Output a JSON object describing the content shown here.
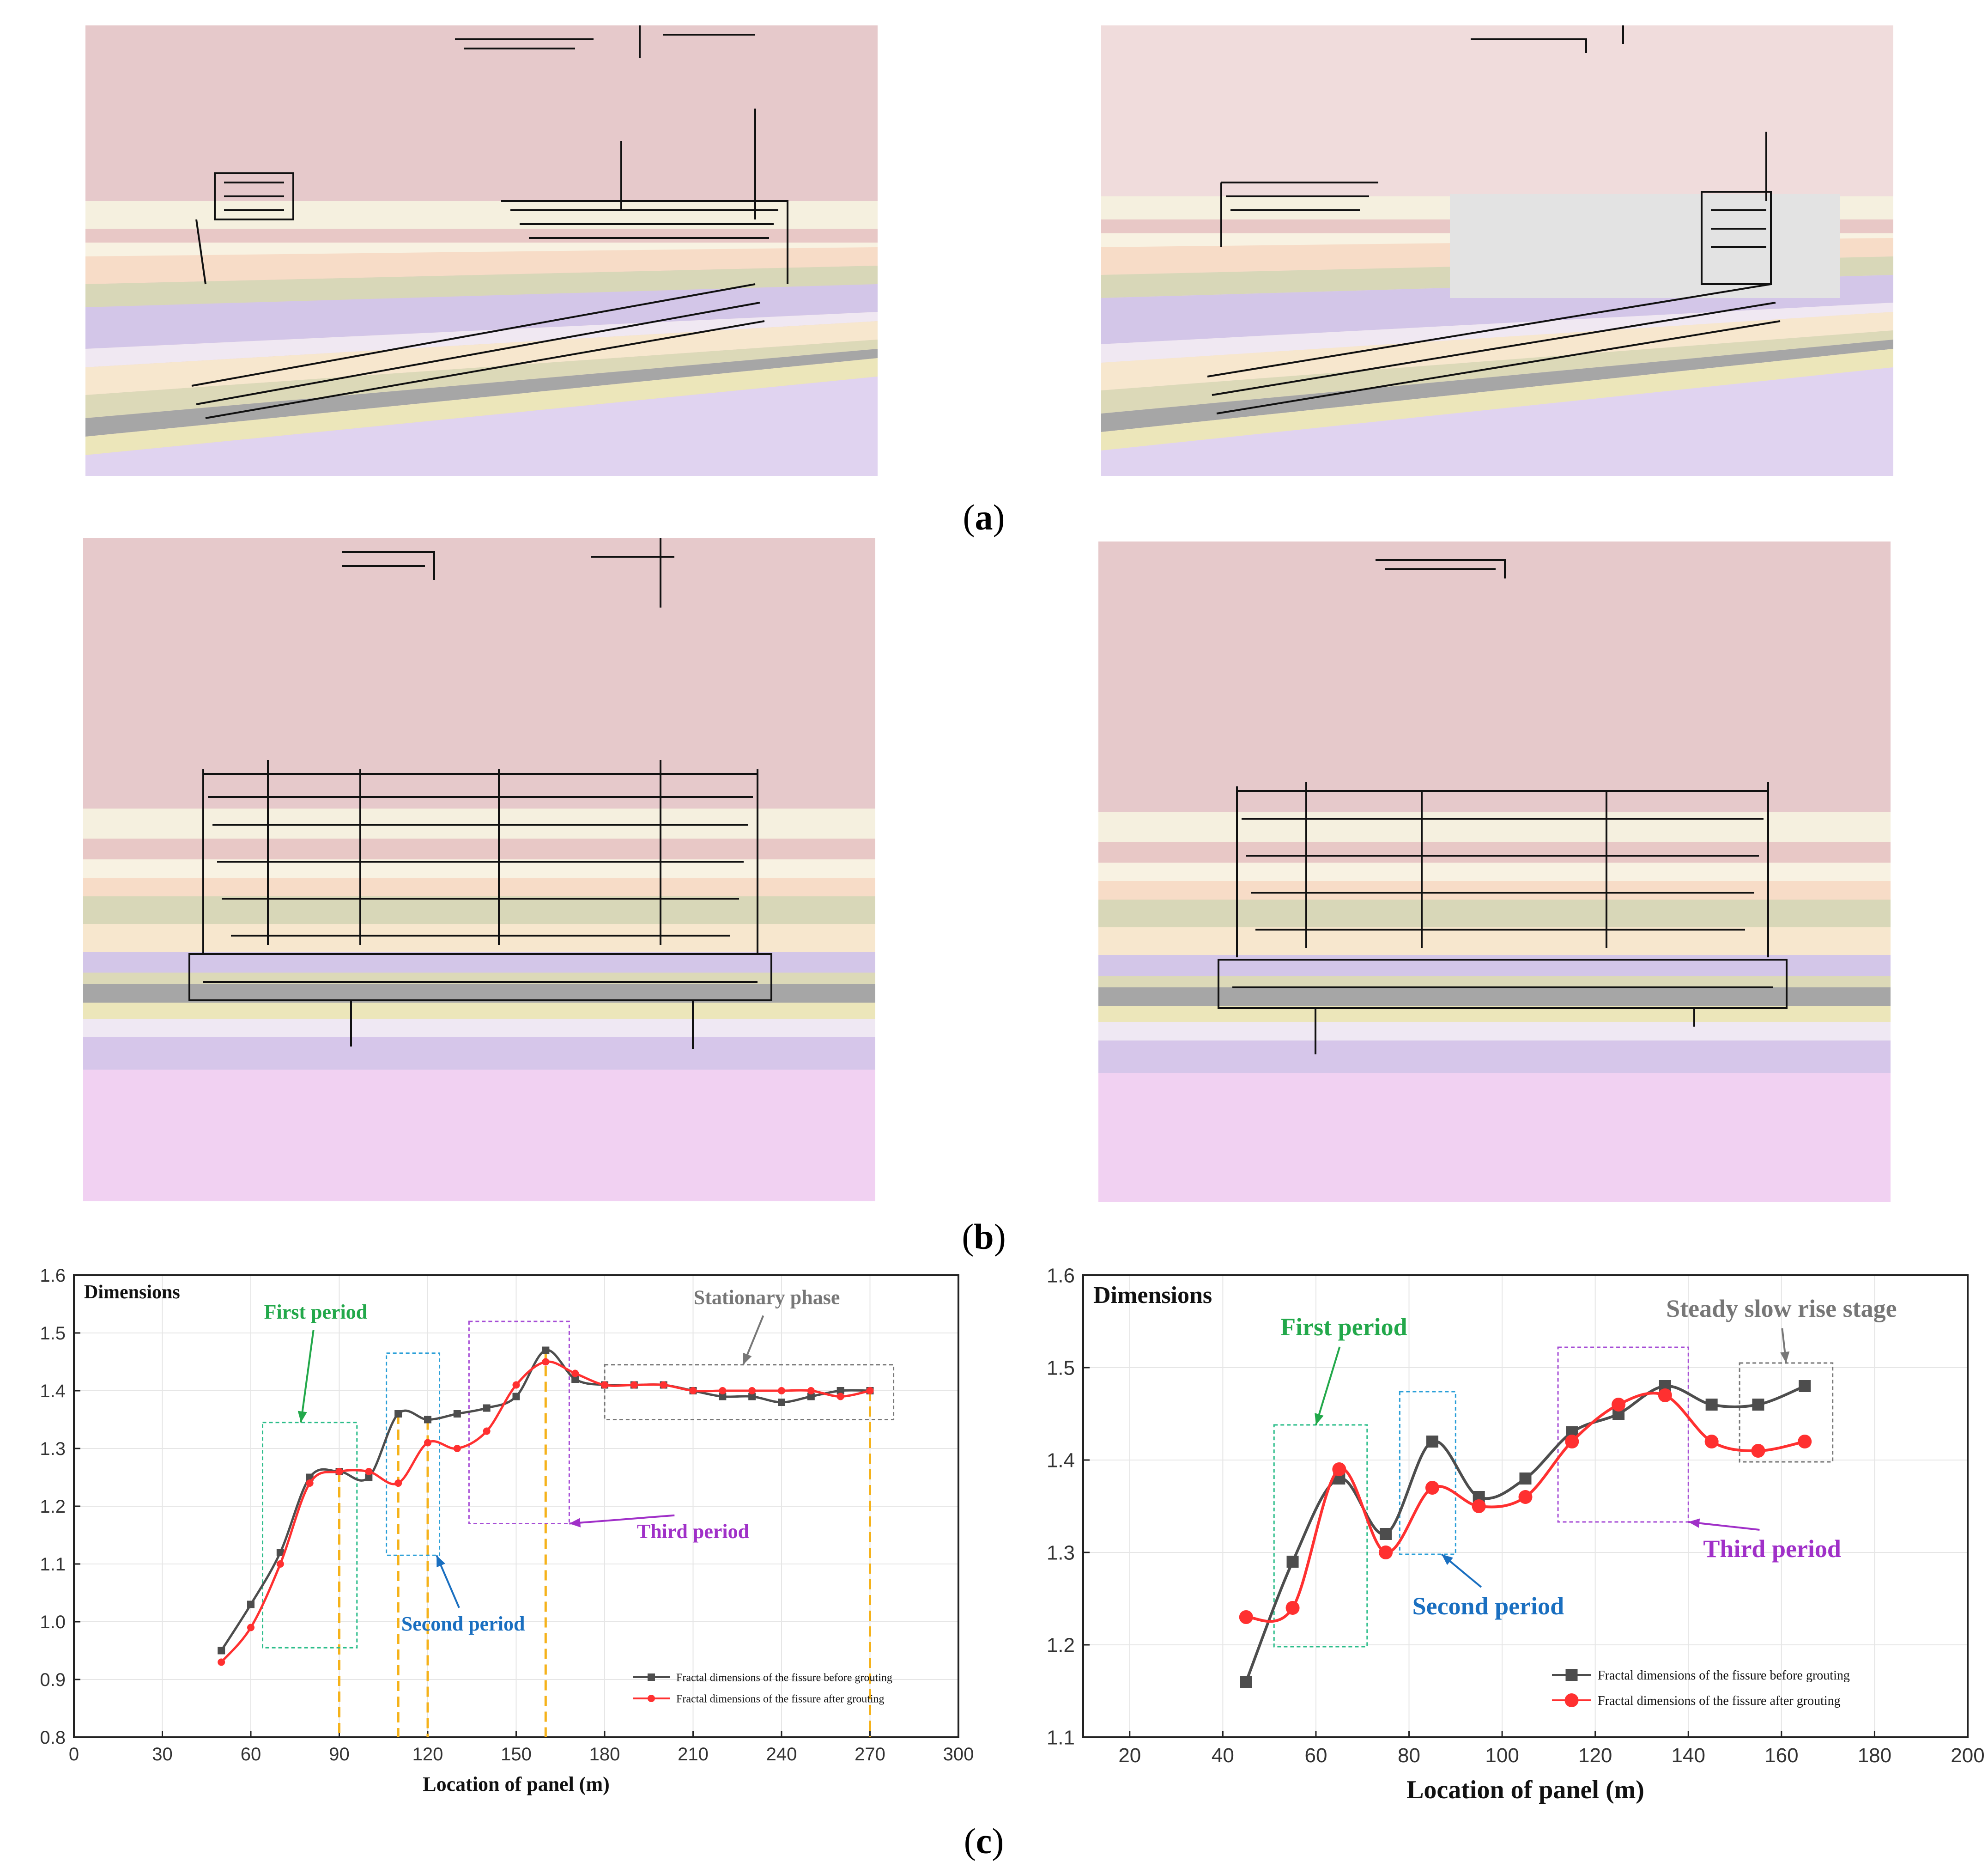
{
  "captions": {
    "a": "a",
    "b": "b",
    "c": "c"
  },
  "colors": {
    "before": "#4d4d4d",
    "after": "#ff3030",
    "first_period": "#2bbd8a",
    "second_period": "#2a9fd8",
    "third_period": "#a64dd6",
    "stationary": "#777777",
    "guide": "#f5b21a",
    "first_period_text": "#22a84a",
    "second_period_text": "#1a6fc0",
    "third_period_text": "#a030c8"
  },
  "chart_data": [
    {
      "type": "line",
      "title": "Dimensions",
      "xlabel": "Location of panel (m)",
      "ylabel": "",
      "xlim": [
        0,
        300
      ],
      "ylim": [
        0.8,
        1.6
      ],
      "xticks": [
        "0",
        "30",
        "60",
        "90",
        "120",
        "150",
        "180",
        "210",
        "240",
        "270",
        "300"
      ],
      "yticks": [
        "0.8",
        "0.9",
        "1.0",
        "1.1",
        "1.2",
        "1.3",
        "1.4",
        "1.5",
        "1.6"
      ],
      "grid": true,
      "legend_position": "bottom-right",
      "series": [
        {
          "name": "Fractal dimensions of the fissure before grouting",
          "x": [
            50,
            60,
            70,
            80,
            90,
            100,
            110,
            120,
            130,
            140,
            150,
            160,
            170,
            180,
            190,
            200,
            210,
            220,
            230,
            240,
            250,
            260,
            270
          ],
          "y": [
            0.95,
            1.03,
            1.12,
            1.25,
            1.26,
            1.25,
            1.36,
            1.35,
            1.36,
            1.37,
            1.39,
            1.47,
            1.42,
            1.41,
            1.41,
            1.41,
            1.4,
            1.39,
            1.39,
            1.38,
            1.39,
            1.4,
            1.4
          ]
        },
        {
          "name": "Fractal dimensions of the fissure after grouting",
          "x": [
            50,
            60,
            70,
            80,
            90,
            100,
            110,
            120,
            130,
            140,
            150,
            160,
            170,
            180,
            190,
            200,
            210,
            220,
            230,
            240,
            250,
            260,
            270
          ],
          "y": [
            0.93,
            0.99,
            1.1,
            1.24,
            1.26,
            1.26,
            1.24,
            1.31,
            1.3,
            1.33,
            1.41,
            1.45,
            1.43,
            1.41,
            1.41,
            1.41,
            1.4,
            1.4,
            1.4,
            1.4,
            1.4,
            1.39,
            1.4
          ]
        }
      ],
      "guide_lines_x": [
        90,
        110,
        120,
        160,
        270
      ],
      "annotations": [
        {
          "text": "First period",
          "color_key": "first_period_text",
          "box": {
            "x0": 64,
            "x1": 96,
            "y0": 0.955,
            "y1": 1.345
          },
          "box_color_key": "first_period",
          "label_at": {
            "x": 82,
            "y": 1.525
          },
          "arrow_to": {
            "x": 77,
            "y": 1.345
          }
        },
        {
          "text": "Second period",
          "color_key": "second_period_text",
          "box": {
            "x0": 106,
            "x1": 124,
            "y0": 1.115,
            "y1": 1.465
          },
          "box_color_key": "second_period",
          "label_at": {
            "x": 132,
            "y": 0.985
          },
          "arrow_to": {
            "x": 123,
            "y": 1.115
          }
        },
        {
          "text": "Third period",
          "color_key": "third_period_text",
          "box": {
            "x0": 134,
            "x1": 168,
            "y0": 1.17,
            "y1": 1.52
          },
          "box_color_key": "third_period",
          "label_at": {
            "x": 210,
            "y": 1.145
          },
          "arrow_to": {
            "x": 168,
            "y": 1.17
          }
        },
        {
          "text": "Stationary phase",
          "color_key": "stationary",
          "box": {
            "x0": 180,
            "x1": 278,
            "y0": 1.35,
            "y1": 1.445
          },
          "box_color_key": "stationary",
          "label_at": {
            "x": 235,
            "y": 1.55
          },
          "arrow_to": {
            "x": 227,
            "y": 1.445
          }
        }
      ]
    },
    {
      "type": "line",
      "title": "Dimensions",
      "xlabel": "Location of panel (m)",
      "ylabel": "",
      "xlim": [
        10,
        200
      ],
      "ylim": [
        1.1,
        1.6
      ],
      "xticks": [
        "20",
        "40",
        "60",
        "80",
        "100",
        "120",
        "140",
        "160",
        "180",
        "200"
      ],
      "yticks": [
        "1.1",
        "1.2",
        "1.3",
        "1.4",
        "1.5",
        "1.6"
      ],
      "grid": true,
      "legend_position": "bottom-right",
      "series": [
        {
          "name": "Fractal dimensions of the fissure before grouting",
          "x": [
            45,
            55,
            65,
            75,
            85,
            95,
            105,
            115,
            125,
            135,
            145,
            155,
            165
          ],
          "y": [
            1.16,
            1.29,
            1.38,
            1.32,
            1.42,
            1.36,
            1.38,
            1.43,
            1.45,
            1.48,
            1.46,
            1.46,
            1.48
          ]
        },
        {
          "name": "Fractal dimensions of the fissure after grouting",
          "x": [
            45,
            55,
            65,
            75,
            85,
            95,
            105,
            115,
            125,
            135,
            145,
            155,
            165
          ],
          "y": [
            1.23,
            1.24,
            1.39,
            1.3,
            1.37,
            1.35,
            1.36,
            1.42,
            1.46,
            1.47,
            1.42,
            1.41,
            1.42
          ]
        }
      ],
      "annotations": [
        {
          "text": "First period",
          "color_key": "first_period_text",
          "box": {
            "x0": 51,
            "x1": 71,
            "y0": 1.198,
            "y1": 1.438
          },
          "box_color_key": "first_period",
          "label_at": {
            "x": 66,
            "y": 1.535
          },
          "arrow_to": {
            "x": 60,
            "y": 1.438
          }
        },
        {
          "text": "Second period",
          "color_key": "second_period_text",
          "box": {
            "x0": 78,
            "x1": 90,
            "y0": 1.298,
            "y1": 1.474
          },
          "box_color_key": "second_period",
          "label_at": {
            "x": 97,
            "y": 1.233
          },
          "arrow_to": {
            "x": 87,
            "y": 1.298
          }
        },
        {
          "text": "Third period",
          "color_key": "third_period_text",
          "box": {
            "x0": 112,
            "x1": 140,
            "y0": 1.333,
            "y1": 1.522
          },
          "box_color_key": "third_period",
          "label_at": {
            "x": 158,
            "y": 1.295
          },
          "arrow_to": {
            "x": 140,
            "y": 1.333
          }
        },
        {
          "text": "Steady slow rise stage",
          "color_key": "stationary",
          "box": {
            "x0": 151,
            "x1": 171,
            "y0": 1.398,
            "y1": 1.505
          },
          "box_color_key": "stationary",
          "label_at": {
            "x": 160,
            "y": 1.555
          },
          "arrow_to": {
            "x": 161,
            "y": 1.505
          }
        }
      ]
    }
  ]
}
